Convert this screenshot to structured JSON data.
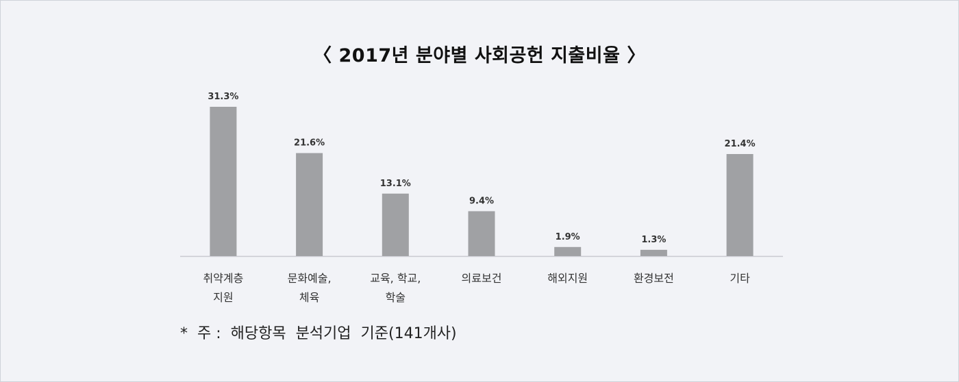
{
  "chart_data": {
    "type": "bar",
    "title": "〈  2017년  분야별  사회공헌  지출비율  〉",
    "categories": [
      [
        "취약계층",
        "지원"
      ],
      [
        "문화예술,",
        "체육"
      ],
      [
        "교육, 학교,",
        "학술"
      ],
      [
        "의료보건"
      ],
      [
        "해외지원"
      ],
      [
        "환경보전"
      ],
      [
        "기타"
      ]
    ],
    "values": [
      31.3,
      21.6,
      13.1,
      9.4,
      1.9,
      1.3,
      21.4
    ],
    "value_labels": [
      "31.3%",
      "21.6%",
      "13.1%",
      "9.4%",
      "1.9%",
      "1.3%",
      "21.4%"
    ],
    "ylim": [
      0,
      31.3
    ],
    "bar_color": "#a0a1a4",
    "axis_color": "#c8cad0",
    "grid": false,
    "legend": "none",
    "footnote": "*  주 :  해당항목  분석기업  기준(141개사)"
  }
}
